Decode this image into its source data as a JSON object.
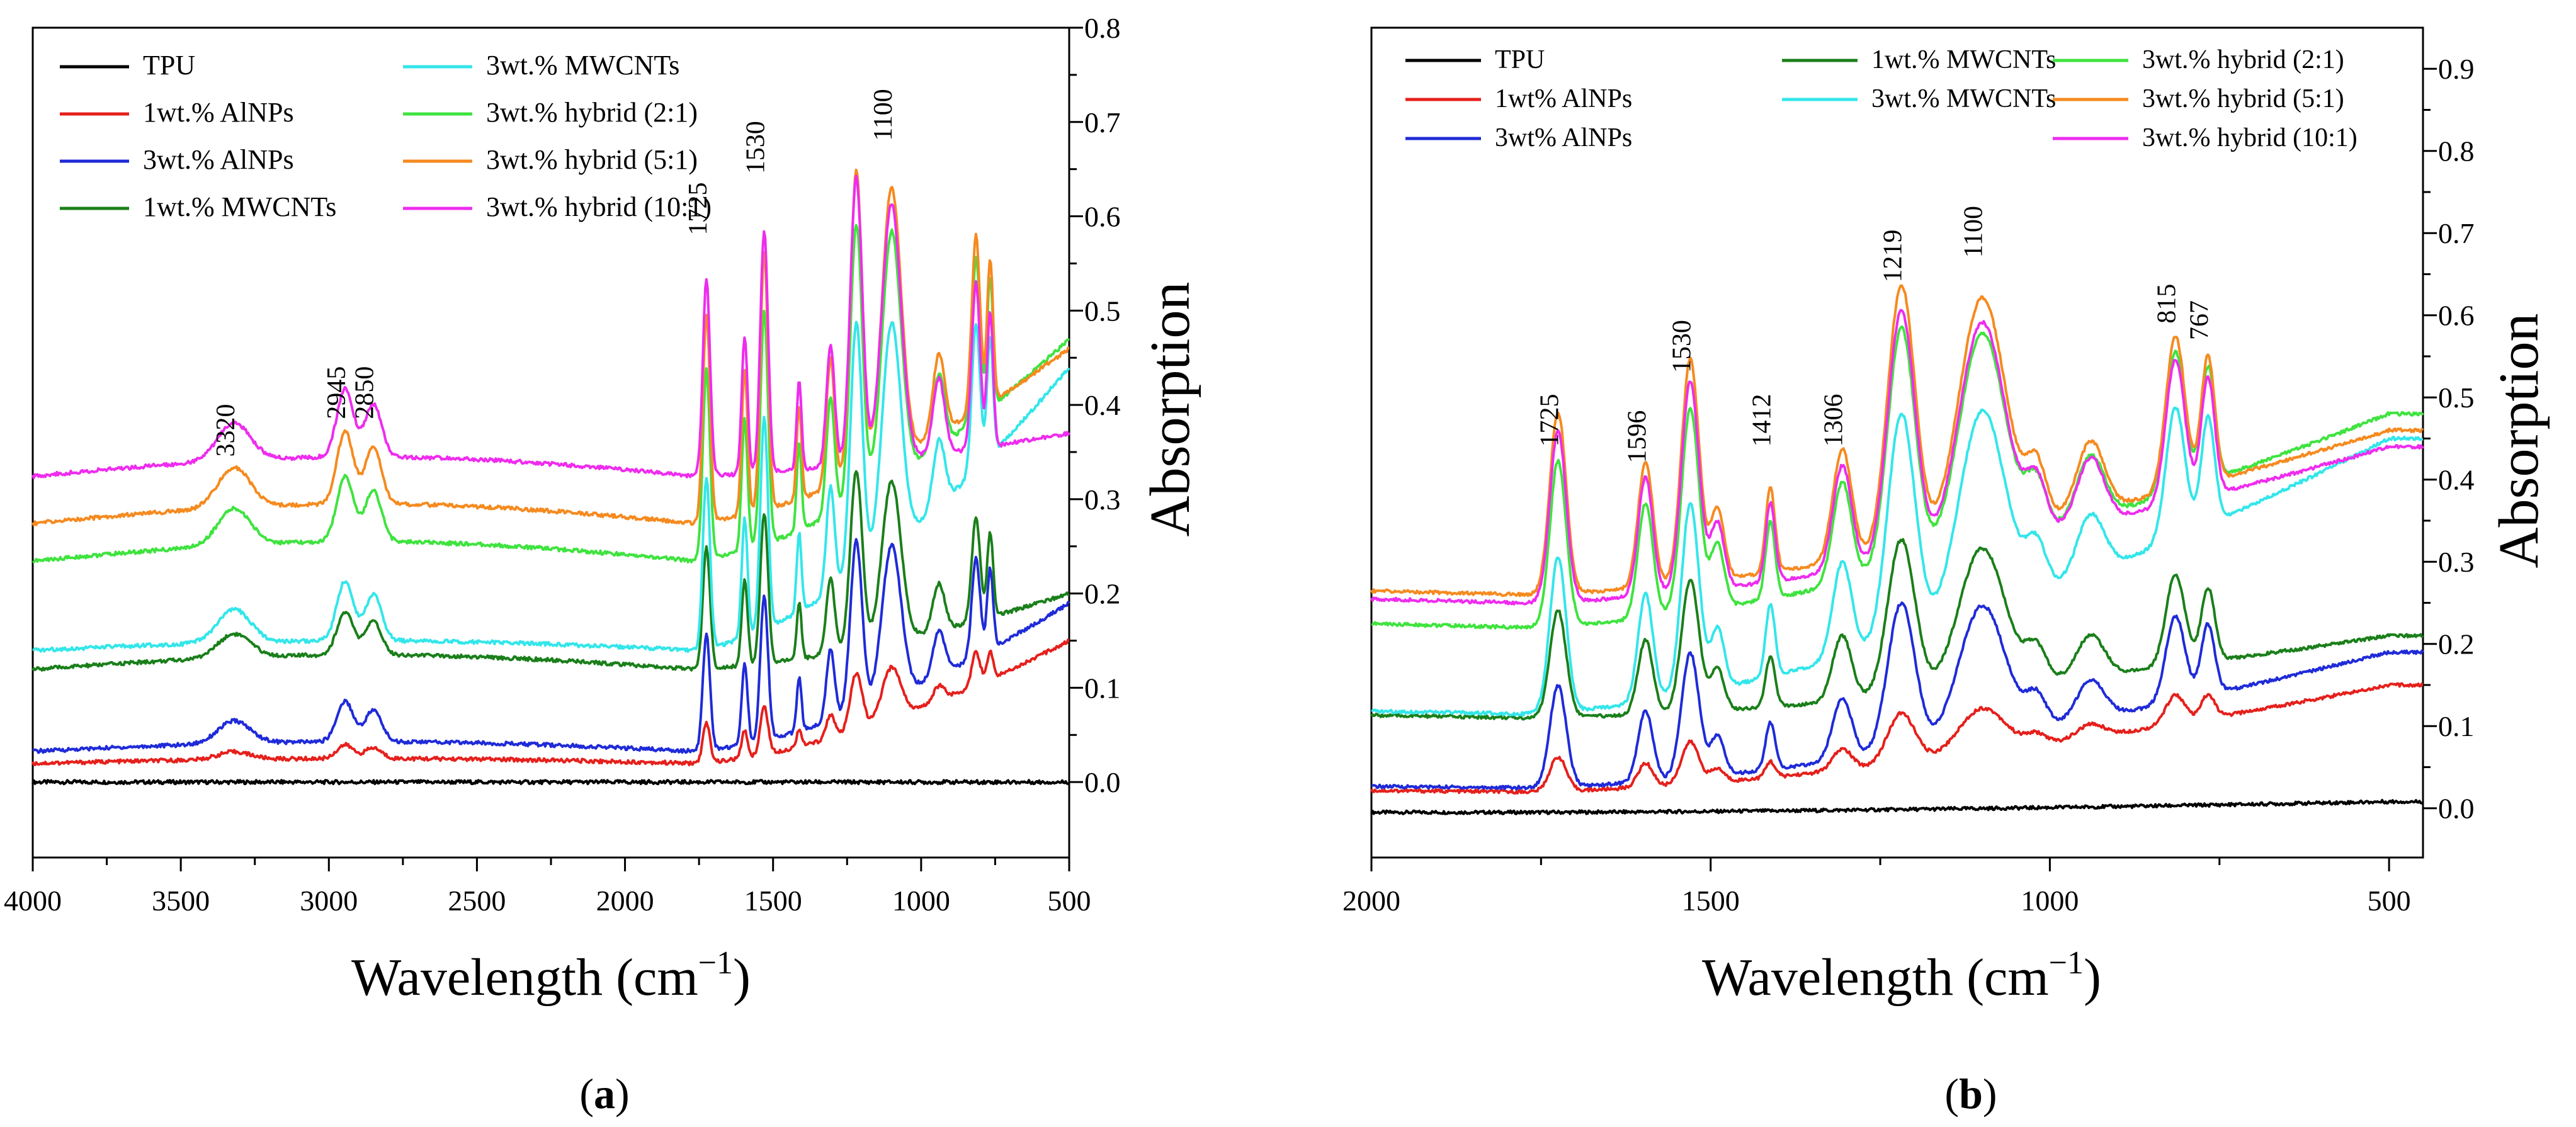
{
  "colors": {
    "TPU": "#000000",
    "AlNP1": "#e5201c",
    "AlNP3": "#1f2bd8",
    "MW1": "#1a7f1a",
    "MW3": "#33e6ea",
    "H21": "#3fe33f",
    "H51": "#f58a1f",
    "H101": "#ee2cee"
  },
  "chart_data": [
    {
      "panel_label": "a",
      "type": "line",
      "xlabel": "Wavelength (cm",
      "xlabel_sup": "−1",
      "xlabel_close": ")",
      "ylabel": "Absorption",
      "xlim": [
        4000,
        500
      ],
      "ylim": [
        -0.08,
        0.8
      ],
      "xticks": [
        {
          "v": 4000,
          "label": "4000"
        },
        {
          "v": 3500,
          "label": "3500"
        },
        {
          "v": 3000,
          "label": "3000"
        },
        {
          "v": 2500,
          "label": "2500"
        },
        {
          "v": 2000,
          "label": "2000"
        },
        {
          "v": 1500,
          "label": "1500"
        },
        {
          "v": 1000,
          "label": "1000"
        },
        {
          "v": 500,
          "label": "500"
        }
      ],
      "yticks": [
        {
          "v": 0.0,
          "label": "0.0"
        },
        {
          "v": 0.1,
          "label": "0.1"
        },
        {
          "v": 0.2,
          "label": "0.2"
        },
        {
          "v": 0.3,
          "label": "0.3"
        },
        {
          "v": 0.4,
          "label": "0.4"
        },
        {
          "v": 0.5,
          "label": "0.5"
        },
        {
          "v": 0.6,
          "label": "0.6"
        },
        {
          "v": 0.7,
          "label": "0.7"
        },
        {
          "v": 0.8,
          "label": "0.8"
        }
      ],
      "legend": {
        "columns": [
          [
            {
              "key": "TPU",
              "label": "TPU"
            },
            {
              "key": "AlNP1",
              "label": "1wt.% AlNPs"
            },
            {
              "key": "AlNP3",
              "label": "3wt.% AlNPs"
            },
            {
              "key": "MW1",
              "label": "1wt.% MWCNTs"
            }
          ],
          [
            {
              "key": "MW3",
              "label": "3wt.% MWCNTs"
            },
            {
              "key": "H21",
              "label": "3wt.% hybrid (2:1)"
            },
            {
              "key": "H51",
              "label": "3wt.% hybrid (5:1)"
            },
            {
              "key": "H101",
              "label": "3wt.% hybrid (10:1)"
            }
          ]
        ]
      },
      "annotations": [
        {
          "x": 3320,
          "y": 0.345,
          "label": "3320"
        },
        {
          "x": 2945,
          "y": 0.385,
          "label": "2945"
        },
        {
          "x": 2850,
          "y": 0.385,
          "label": "2850"
        },
        {
          "x": 1725,
          "y": 0.58,
          "label": "1725"
        },
        {
          "x": 1530,
          "y": 0.645,
          "label": "1530"
        },
        {
          "x": 1100,
          "y": 0.68,
          "label": "1100"
        }
      ],
      "peaks": [
        {
          "c": 3320,
          "w": 55,
          "s": 0.025
        },
        {
          "c": 2945,
          "w": 28,
          "s": 0.045
        },
        {
          "c": 2850,
          "w": 28,
          "s": 0.035
        },
        {
          "c": 1725,
          "w": 12,
          "s": 0.13
        },
        {
          "c": 1596,
          "w": 10,
          "s": 0.09
        },
        {
          "c": 1530,
          "w": 13,
          "s": 0.16
        },
        {
          "c": 1412,
          "w": 8,
          "s": 0.06
        },
        {
          "c": 1306,
          "w": 14,
          "s": 0.08
        },
        {
          "c": 1219,
          "w": 20,
          "s": 0.19
        },
        {
          "c": 1100,
          "w": 32,
          "s": 0.17
        },
        {
          "c": 940,
          "w": 20,
          "s": 0.05
        },
        {
          "c": 815,
          "w": 14,
          "s": 0.11
        },
        {
          "c": 767,
          "w": 10,
          "s": 0.09
        }
      ],
      "series": [
        {
          "key": "TPU",
          "name": "TPU",
          "base": 0.0,
          "scale": 0.0,
          "plat": 0.0,
          "tail": 0.0
        },
        {
          "key": "AlNP1",
          "name": "1wt.% AlNPs",
          "base": 0.02,
          "scale": 0.32,
          "plat": 0.005,
          "tail": 0.15
        },
        {
          "key": "AlNP3",
          "name": "3wt.% AlNPs",
          "base": 0.033,
          "scale": 0.95,
          "plat": 0.01,
          "tail": 0.19
        },
        {
          "key": "MW1",
          "name": "1wt.% MWCNTs",
          "base": 0.12,
          "scale": 1.0,
          "plat": 0.015,
          "tail": 0.2
        },
        {
          "key": "MW3",
          "name": "3wt.% MWCNTs",
          "base": 0.14,
          "scale": 1.4,
          "plat": 0.01,
          "tail": 0.44
        },
        {
          "key": "H21",
          "name": "3wt.% hybrid (2:1)",
          "base": 0.235,
          "scale": 1.55,
          "plat": 0.02,
          "tail": 0.47
        },
        {
          "key": "H51",
          "name": "3wt.% hybrid (5:1)",
          "base": 0.275,
          "scale": 1.7,
          "plat": 0.02,
          "tail": 0.46
        },
        {
          "key": "H101",
          "name": "3wt.% hybrid (10:1)",
          "base": 0.325,
          "scale": 1.6,
          "plat": 0.02,
          "tail": 0.37
        }
      ]
    },
    {
      "panel_label": "b",
      "type": "line",
      "xlabel": "Wavelength (cm",
      "xlabel_sup": "−1",
      "xlabel_close": ")",
      "ylabel": "Absorption",
      "xlim": [
        2000,
        450
      ],
      "ylim": [
        -0.06,
        0.95
      ],
      "xticks": [
        {
          "v": 2000,
          "label": "2000"
        },
        {
          "v": 1500,
          "label": "1500"
        },
        {
          "v": 1000,
          "label": "1000"
        },
        {
          "v": 500,
          "label": "500"
        }
      ],
      "yticks": [
        {
          "v": 0.0,
          "label": "0.0"
        },
        {
          "v": 0.1,
          "label": "0.1"
        },
        {
          "v": 0.2,
          "label": "0.2"
        },
        {
          "v": 0.3,
          "label": "0.3"
        },
        {
          "v": 0.4,
          "label": "0.4"
        },
        {
          "v": 0.5,
          "label": "0.5"
        },
        {
          "v": 0.6,
          "label": "0.6"
        },
        {
          "v": 0.7,
          "label": "0.7"
        },
        {
          "v": 0.8,
          "label": "0.8"
        },
        {
          "v": 0.9,
          "label": "0.9"
        }
      ],
      "legend": {
        "columns": [
          [
            {
              "key": "TPU",
              "label": "TPU"
            },
            {
              "key": "AlNP1",
              "label": "1wt% AlNPs"
            },
            {
              "key": "AlNP3",
              "label": "3wt% AlNPs"
            }
          ],
          [
            {
              "key": "MW1",
              "label": "1wt.% MWCNTs"
            },
            {
              "key": "MW3",
              "label": "3wt.% MWCNTs"
            }
          ],
          [
            {
              "key": "H21",
              "label": "3wt.% hybrid (2:1)"
            },
            {
              "key": "H51",
              "label": "3wt.% hybrid (5:1)"
            },
            {
              "key": "H101",
              "label": "3wt.% hybrid (10:1)"
            }
          ]
        ]
      },
      "annotations": [
        {
          "x": 1725,
          "y": 0.44,
          "label": "1725"
        },
        {
          "x": 1596,
          "y": 0.42,
          "label": "1596"
        },
        {
          "x": 1530,
          "y": 0.53,
          "label": "1530"
        },
        {
          "x": 1412,
          "y": 0.44,
          "label": "1412"
        },
        {
          "x": 1306,
          "y": 0.44,
          "label": "1306"
        },
        {
          "x": 1219,
          "y": 0.64,
          "label": "1219"
        },
        {
          "x": 1100,
          "y": 0.67,
          "label": "1100"
        },
        {
          "x": 815,
          "y": 0.59,
          "label": "815"
        },
        {
          "x": 767,
          "y": 0.57,
          "label": "767"
        }
      ],
      "peaks": [
        {
          "c": 1725,
          "w": 12,
          "s": 0.13
        },
        {
          "c": 1596,
          "w": 11,
          "s": 0.09
        },
        {
          "c": 1530,
          "w": 13,
          "s": 0.16
        },
        {
          "c": 1490,
          "w": 10,
          "s": 0.05
        },
        {
          "c": 1412,
          "w": 7,
          "s": 0.06
        },
        {
          "c": 1306,
          "w": 14,
          "s": 0.08
        },
        {
          "c": 1219,
          "w": 20,
          "s": 0.19
        },
        {
          "c": 1100,
          "w": 34,
          "s": 0.17
        },
        {
          "c": 1020,
          "w": 15,
          "s": 0.04
        },
        {
          "c": 940,
          "w": 20,
          "s": 0.05
        },
        {
          "c": 815,
          "w": 14,
          "s": 0.11
        },
        {
          "c": 767,
          "w": 10,
          "s": 0.09
        }
      ],
      "series": [
        {
          "key": "TPU",
          "name": "TPU",
          "base": -0.005,
          "scale": 0.0,
          "plat": 0.0,
          "tail": 0.008
        },
        {
          "key": "AlNP1",
          "name": "1wt% AlNPs",
          "base": 0.02,
          "scale": 0.32,
          "plat": 0.005,
          "tail": 0.15
        },
        {
          "key": "AlNP3",
          "name": "3wt% AlNPs",
          "base": 0.025,
          "scale": 0.95,
          "plat": 0.005,
          "tail": 0.19
        },
        {
          "key": "MW1",
          "name": "1wt.% MWCNTs",
          "base": 0.11,
          "scale": 1.0,
          "plat": 0.01,
          "tail": 0.21
        },
        {
          "key": "MW3",
          "name": "3wt.% MWCNTs",
          "base": 0.115,
          "scale": 1.45,
          "plat": 0.01,
          "tail": 0.45
        },
        {
          "key": "H21",
          "name": "3wt.% hybrid (2:1)",
          "base": 0.22,
          "scale": 1.55,
          "plat": 0.015,
          "tail": 0.48
        },
        {
          "key": "H51",
          "name": "3wt.% hybrid (5:1)",
          "base": 0.26,
          "scale": 1.7,
          "plat": 0.015,
          "tail": 0.46
        },
        {
          "key": "H101",
          "name": "3wt.% hybrid (10:1)",
          "base": 0.25,
          "scale": 1.6,
          "plat": 0.015,
          "tail": 0.44
        }
      ]
    }
  ]
}
